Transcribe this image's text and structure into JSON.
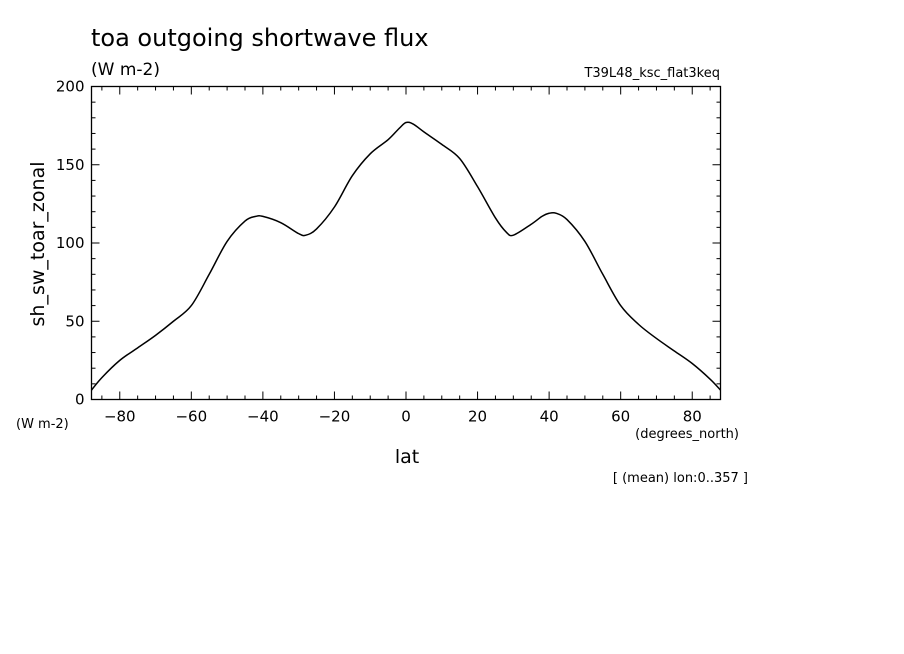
{
  "chart_data": {
    "type": "line",
    "title": "toa outgoing shortwave flux",
    "subtitle": "(W m-2)",
    "run_label": "T39L48_ksc_flat3keq",
    "ylabel": "sh_sw_toar_zonal",
    "y_units": "(W m-2)",
    "xlabel": "lat",
    "x_units": "(degrees_north)",
    "footnote": "[ (mean) lon:0..357 ]",
    "xlim": [
      -87.9,
      87.9
    ],
    "ylim": [
      0,
      200
    ],
    "x_ticks": [
      -80,
      -60,
      -40,
      -20,
      0,
      20,
      40,
      60,
      80
    ],
    "y_ticks": [
      0,
      50,
      100,
      150,
      200
    ],
    "grid": false,
    "series": [
      {
        "x": [
          -87.9,
          -85,
          -80,
          -75,
          -70,
          -65,
          -60,
          -55,
          -50,
          -45,
          -42,
          -40,
          -35,
          -30,
          -28,
          -25,
          -20,
          -15,
          -10,
          -5,
          -2,
          0,
          2,
          5,
          10,
          15,
          20,
          25,
          28,
          30,
          35,
          38,
          40,
          42,
          45,
          50,
          55,
          60,
          65,
          70,
          75,
          80,
          85,
          87.9
        ],
        "y": [
          6,
          14,
          25,
          33,
          41,
          50,
          60,
          80,
          101,
          114,
          117,
          117,
          113,
          106,
          105,
          109,
          123,
          143,
          157,
          166,
          173,
          177,
          176,
          171,
          163,
          154,
          136,
          116,
          107,
          105,
          112,
          117,
          119,
          119,
          115,
          101,
          80,
          60,
          48,
          39,
          31,
          23,
          13,
          6
        ]
      }
    ]
  }
}
